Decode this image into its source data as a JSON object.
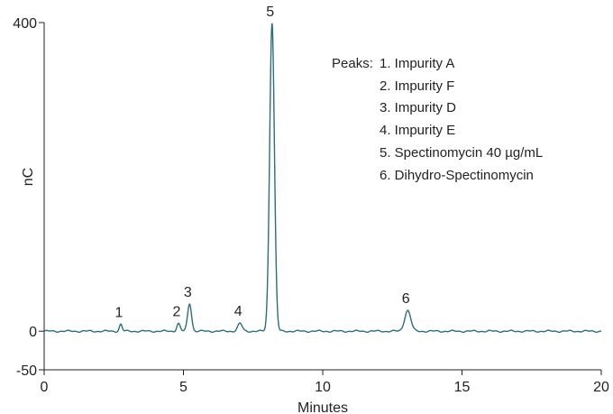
{
  "chart_data": {
    "type": "line",
    "xlabel": "Minutes",
    "ylabel": "nC",
    "xlim": [
      0,
      20
    ],
    "ylim": [
      -50,
      400
    ],
    "x_ticks": [
      0,
      5,
      10,
      15,
      20
    ],
    "x_tick_labels": [
      "0",
      "5",
      "10",
      "15",
      "20"
    ],
    "y_ticks": [
      -50,
      0,
      400
    ],
    "y_tick_labels": [
      "-50",
      "0",
      "400"
    ],
    "grid": false,
    "line_color": "#2a6f7a",
    "baseline": 0,
    "peaks": [
      {
        "label": "1",
        "x": 2.75,
        "height": 9,
        "width": 0.05
      },
      {
        "label": "2",
        "x": 4.82,
        "height": 10,
        "width": 0.06
      },
      {
        "label": "3",
        "x": 5.22,
        "height": 36,
        "width": 0.07
      },
      {
        "label": "4",
        "x": 7.03,
        "height": 10,
        "width": 0.08
      },
      {
        "label": "5",
        "x": 8.18,
        "height": 400,
        "width": 0.085
      },
      {
        "label": "6",
        "x": 13.05,
        "height": 27,
        "width": 0.11
      }
    ],
    "legend": {
      "title": "Peaks:",
      "placement": "top-right",
      "entries": [
        "1. Impurity A",
        "2. Impurity F",
        "3. Impurity D",
        "4. Impurity E",
        "5. Spectinomycin 40 µg/mL",
        "6. Dihydro-Spectinomycin"
      ]
    }
  }
}
